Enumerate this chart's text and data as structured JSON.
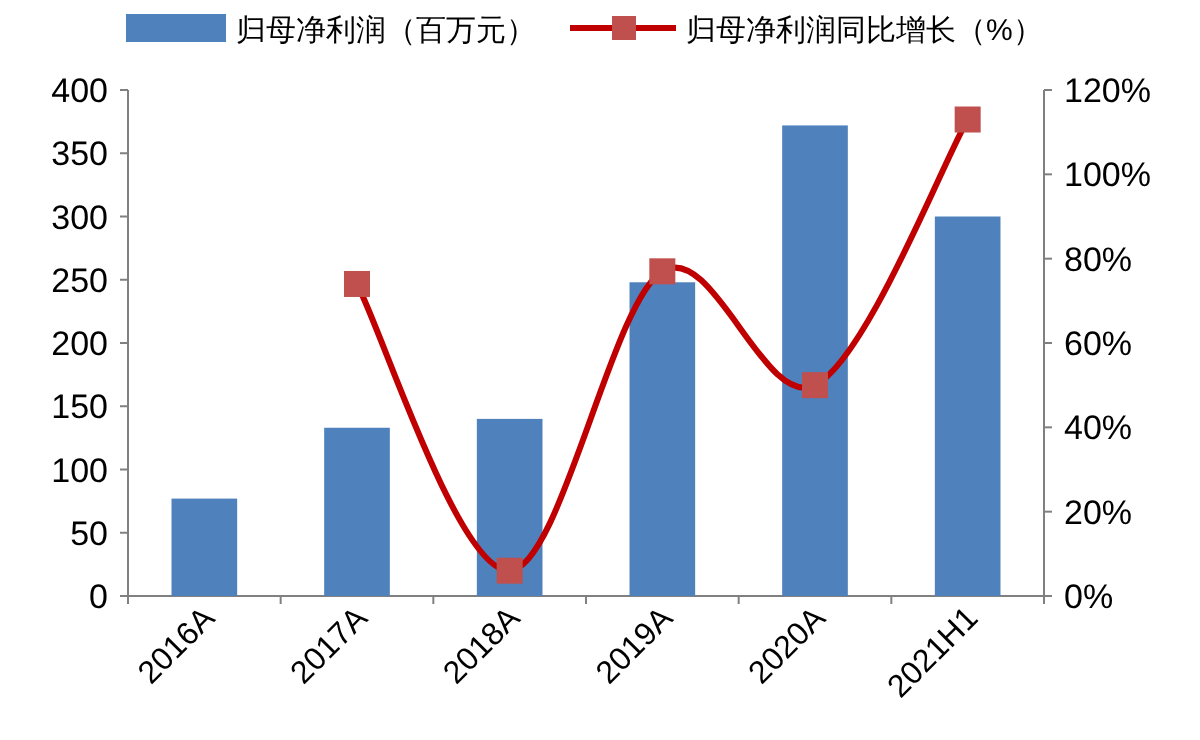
{
  "chart_data": {
    "type": "bar",
    "categories": [
      "2016A",
      "2017A",
      "2018A",
      "2019A",
      "2020A",
      "2021H1"
    ],
    "series": [
      {
        "name": "归母净利润（百万元）",
        "color": "#4f81bd",
        "values": [
          77,
          133,
          140,
          248,
          372,
          300
        ]
      },
      {
        "name": "归母净利润同比增长（%）",
        "type": "line",
        "axis": "y2",
        "color": "#c00000",
        "marker": "square",
        "values": [
          null,
          74,
          6,
          77,
          50,
          113
        ]
      }
    ],
    "ylim": [
      0,
      400
    ],
    "yticks": [
      0,
      50,
      100,
      150,
      200,
      250,
      300,
      350,
      400
    ],
    "y2lim": [
      0,
      120
    ],
    "y2ticks": [
      {
        "value": 0,
        "label": "0%"
      },
      {
        "value": 20,
        "label": "20%"
      },
      {
        "value": 40,
        "label": "40%"
      },
      {
        "value": 60,
        "label": "60%"
      },
      {
        "value": 80,
        "label": "80%"
      },
      {
        "value": 100,
        "label": "100%"
      },
      {
        "value": 120,
        "label": "120%"
      }
    ],
    "legend": "top",
    "grid": false
  }
}
